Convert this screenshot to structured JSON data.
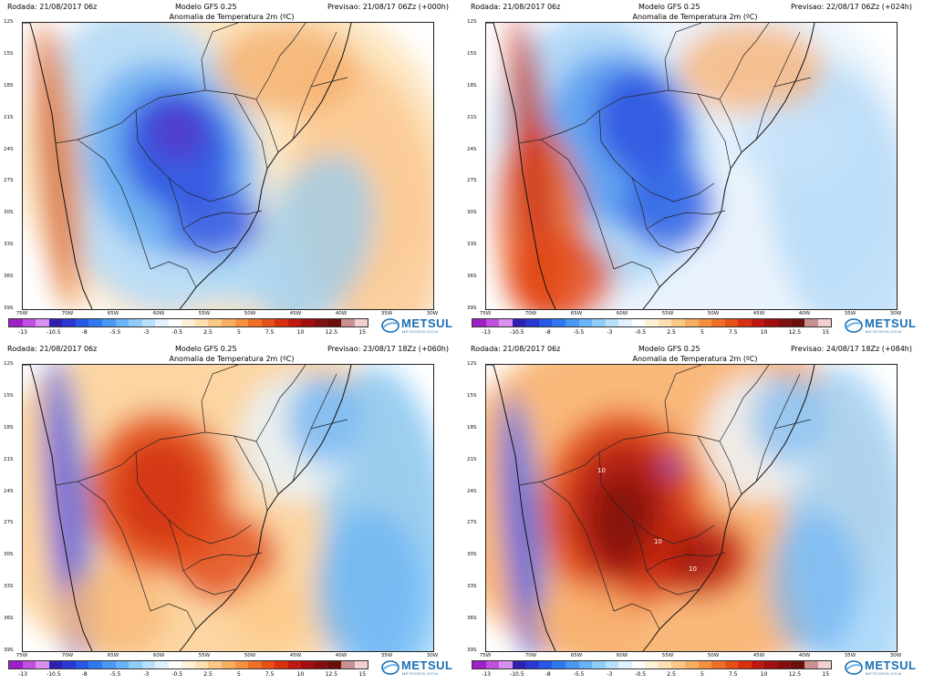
{
  "panels": [
    {
      "run": "Rodada: 21/08/2017 06z",
      "model": "Modelo GFS 0.25",
      "forecast": "Previsao: 21/08/17 06Zz (+000h)",
      "title": "Anomalia de Temperatura 2m (ºC)",
      "phase": "cold"
    },
    {
      "run": "Rodada: 21/08/2017 06z",
      "model": "Modelo GFS 0.25",
      "forecast": "Previsao: 22/08/17 06Zz (+024h)",
      "title": "Anomalia de Temperatura 2m (ºC)",
      "phase": "cold2"
    },
    {
      "run": "Rodada: 21/08/2017 06z",
      "model": "Modelo GFS 0.25",
      "forecast": "Previsao: 23/08/17 18Zz (+060h)",
      "title": "Anomalia de Temperatura 2m (ºC)",
      "phase": "warm"
    },
    {
      "run": "Rodada: 21/08/2017 06z",
      "model": "Modelo GFS 0.25",
      "forecast": "Previsao: 24/08/17 18Zz (+084h)",
      "title": "Anomalia de Temperatura 2m (ºC)",
      "phase": "hot",
      "contour_labels": [
        "10",
        "10",
        "10"
      ]
    }
  ],
  "lat_labels": [
    "12S",
    "15S",
    "18S",
    "21S",
    "24S",
    "27S",
    "30S",
    "33S",
    "36S",
    "39S"
  ],
  "lon_labels": [
    "75W",
    "70W",
    "65W",
    "60W",
    "55W",
    "50W",
    "45W",
    "40W",
    "35W",
    "30W"
  ],
  "colorbar": {
    "ticks": [
      "-13",
      "-10.5",
      "-8",
      "-5.5",
      "-3",
      "-0.5",
      "2.5",
      "5",
      "7.5",
      "10",
      "12.5",
      "15"
    ],
    "colors": [
      "#a020c8",
      "#c050e0",
      "#d890f0",
      "#3020b0",
      "#2838d0",
      "#2858e8",
      "#3078f0",
      "#4898f4",
      "#68b4f6",
      "#90ccf8",
      "#b8e0fa",
      "#e0f0fc",
      "#ffffff",
      "#fff0d8",
      "#fde0b0",
      "#fcc888",
      "#f8ae60",
      "#f49040",
      "#ee7028",
      "#e45018",
      "#d83010",
      "#c01810",
      "#a01010",
      "#801010",
      "#6a1008",
      "#c89090",
      "#f0d0d0"
    ]
  },
  "logo": {
    "name": "METSUL",
    "sub": "METEOROLOGIA"
  }
}
